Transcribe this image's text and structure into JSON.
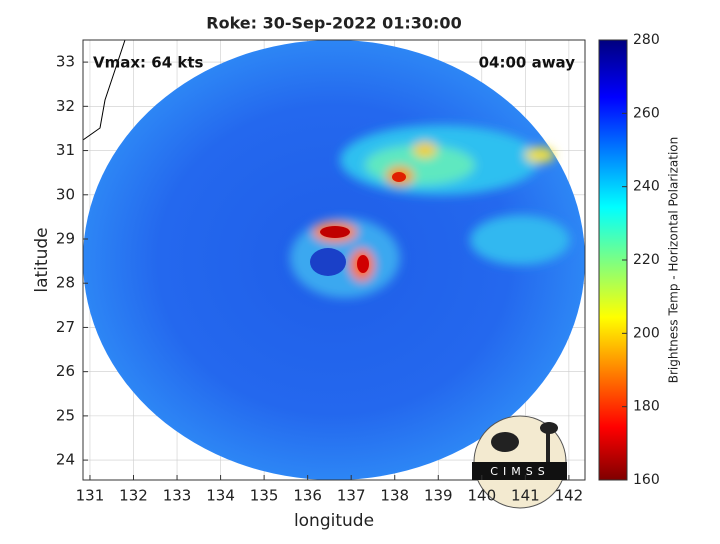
{
  "map": {
    "title": "Roke: 30-Sep-2022 01:30:00",
    "annotations": [
      "Vmax: 64 kts",
      "04:00 away"
    ],
    "xlabel": "longitude",
    "ylabel": "latitude",
    "xlim": [
      130.84,
      142.37
    ],
    "xticks": [
      131,
      132,
      133,
      134,
      135,
      136,
      137,
      138,
      139,
      140,
      141,
      142
    ],
    "ylim": [
      23.55,
      33.5
    ],
    "yticks": [
      24,
      25,
      26,
      27,
      28,
      29,
      30,
      31,
      32,
      33
    ],
    "grid": true,
    "colorbar": {
      "label": "Brightness Temp - Horizontal Polarization",
      "lim": [
        160,
        280
      ],
      "ticks": [
        160,
        180,
        200,
        220,
        240,
        260,
        280
      ]
    },
    "logo": "CIMSS"
  }
}
